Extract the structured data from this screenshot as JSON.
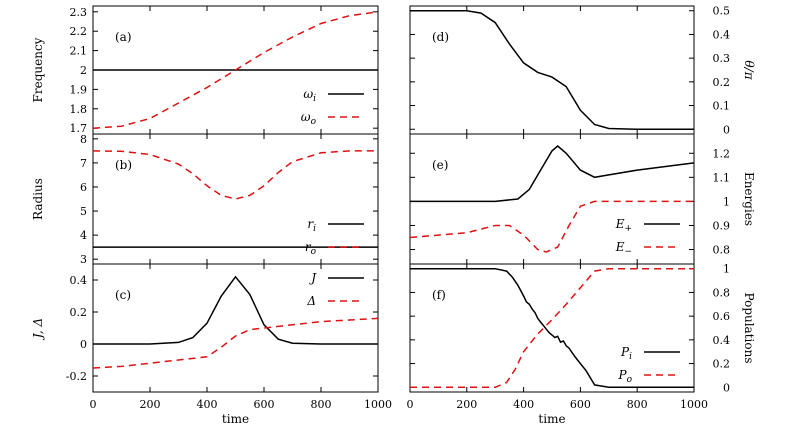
{
  "colors": {
    "solid": "#000000",
    "dashed": "#e01010"
  },
  "chart_data": [
    {
      "type": "line",
      "panel": "a",
      "column": "left",
      "row": 0,
      "label": "(a)",
      "ylabel": "Frequency",
      "ylabel_side": "left",
      "xlabel": "",
      "xlim": [
        0,
        1000
      ],
      "ylim": [
        1.67,
        2.33
      ],
      "yticks": [
        1.7,
        1.8,
        1.9,
        2,
        2.1,
        2.2,
        2.3
      ],
      "ytick_labels": [
        "1.7",
        "1.8",
        "1.9",
        "2",
        "2.1",
        "2.2",
        "2.3"
      ],
      "xticks": [
        0,
        200,
        400,
        600,
        800,
        1000
      ],
      "xtick_labels": [],
      "legend_pos": "bottom-right",
      "series": [
        {
          "name": "ω_i",
          "legend_main": "ω",
          "legend_sub": "i",
          "style": "solid",
          "x": [
            0,
            1000
          ],
          "y": [
            2.0,
            2.0
          ]
        },
        {
          "name": "ω_o",
          "legend_main": "ω",
          "legend_sub": "o",
          "style": "dashed",
          "x": [
            0,
            100,
            200,
            300,
            400,
            500,
            600,
            700,
            800,
            900,
            1000
          ],
          "y": [
            1.7,
            1.71,
            1.75,
            1.83,
            1.91,
            2.0,
            2.09,
            2.17,
            2.24,
            2.28,
            2.3
          ]
        }
      ]
    },
    {
      "type": "line",
      "panel": "b",
      "column": "left",
      "row": 1,
      "label": "(b)",
      "ylabel": "Radius",
      "ylabel_side": "left",
      "xlabel": "",
      "xlim": [
        0,
        1000
      ],
      "ylim": [
        2.8,
        8.2
      ],
      "yticks": [
        3,
        4,
        5,
        6,
        7,
        8
      ],
      "ytick_labels": [
        "3",
        "4",
        "5",
        "6",
        "7",
        "8"
      ],
      "xticks": [
        0,
        200,
        400,
        600,
        800,
        1000
      ],
      "xtick_labels": [],
      "legend_pos": "bottom-right",
      "series": [
        {
          "name": "r_i",
          "legend_main": "r",
          "legend_sub": "i",
          "style": "solid",
          "x": [
            0,
            1000
          ],
          "y": [
            3.5,
            3.5
          ]
        },
        {
          "name": "r_o",
          "legend_main": "r",
          "legend_sub": "o",
          "style": "dashed",
          "x": [
            0,
            100,
            200,
            300,
            350,
            400,
            450,
            500,
            550,
            600,
            650,
            700,
            800,
            900,
            1000
          ],
          "y": [
            7.5,
            7.48,
            7.35,
            6.95,
            6.55,
            6.05,
            5.65,
            5.5,
            5.65,
            6.05,
            6.6,
            7.05,
            7.42,
            7.5,
            7.5
          ]
        }
      ]
    },
    {
      "type": "line",
      "panel": "c",
      "column": "left",
      "row": 2,
      "label": "(c)",
      "ylabel": "J, Δ",
      "ylabel_side": "left",
      "xlabel": "time",
      "xlim": [
        0,
        1000
      ],
      "ylim": [
        -0.3,
        0.5
      ],
      "yticks": [
        -0.2,
        0,
        0.2,
        0.4
      ],
      "ytick_labels": [
        "-0.2",
        "0",
        "0.2",
        "0.4"
      ],
      "xticks": [
        0,
        200,
        400,
        600,
        800,
        1000
      ],
      "xtick_labels": [
        "0",
        "200",
        "400",
        "600",
        "800",
        "1000"
      ],
      "legend_pos": "top-right",
      "series": [
        {
          "name": "J",
          "legend_main": "J",
          "legend_sub": "",
          "style": "solid",
          "x": [
            0,
            200,
            300,
            350,
            400,
            450,
            500,
            550,
            600,
            650,
            700,
            800,
            1000
          ],
          "y": [
            0,
            0,
            0.01,
            0.04,
            0.13,
            0.3,
            0.42,
            0.31,
            0.12,
            0.03,
            0.005,
            0,
            0
          ]
        },
        {
          "name": "Δ",
          "legend_main": "Δ",
          "legend_sub": "",
          "style": "dashed",
          "x": [
            0,
            100,
            200,
            300,
            400,
            450,
            500,
            550,
            600,
            700,
            800,
            900,
            1000
          ],
          "y": [
            -0.15,
            -0.14,
            -0.12,
            -0.1,
            -0.08,
            -0.02,
            0.05,
            0.09,
            0.1,
            0.12,
            0.14,
            0.15,
            0.16
          ]
        }
      ]
    },
    {
      "type": "line",
      "panel": "d",
      "column": "right",
      "row": 0,
      "label": "(d)",
      "ylabel": "θ/π",
      "ylabel_side": "right",
      "xlabel": "",
      "xlim": [
        0,
        1000
      ],
      "ylim": [
        -0.02,
        0.52
      ],
      "yticks": [
        0,
        0.1,
        0.2,
        0.3,
        0.4,
        0.5
      ],
      "ytick_labels": [
        "0",
        "0.1",
        "0.2",
        "0.3",
        "0.4",
        "0.5"
      ],
      "xticks": [
        0,
        200,
        400,
        600,
        800,
        1000
      ],
      "xtick_labels": [],
      "legend_pos": "none",
      "series": [
        {
          "name": "",
          "style": "solid",
          "x": [
            0,
            200,
            250,
            300,
            350,
            400,
            450,
            500,
            550,
            600,
            650,
            700,
            800,
            1000
          ],
          "y": [
            0.5,
            0.5,
            0.49,
            0.45,
            0.36,
            0.28,
            0.24,
            0.22,
            0.18,
            0.08,
            0.02,
            0.003,
            0.0,
            0.0
          ]
        }
      ]
    },
    {
      "type": "line",
      "panel": "e",
      "column": "right",
      "row": 1,
      "label": "(e)",
      "ylabel": "Energies",
      "ylabel_side": "right",
      "xlabel": "",
      "xlim": [
        0,
        1000
      ],
      "ylim": [
        0.74,
        1.28
      ],
      "yticks": [
        0.8,
        0.9,
        1,
        1.1,
        1.2
      ],
      "ytick_labels": [
        "0.8",
        "0.9",
        "1",
        "1.1",
        "1.2"
      ],
      "xticks": [
        0,
        200,
        400,
        600,
        800,
        1000
      ],
      "xtick_labels": [],
      "legend_pos": "bottom-right",
      "series": [
        {
          "name": "E_+",
          "legend_main": "E",
          "legend_sub": "+",
          "style": "solid",
          "x": [
            0,
            300,
            380,
            420,
            460,
            500,
            520,
            550,
            600,
            650,
            700,
            800,
            900,
            1000
          ],
          "y": [
            1.0,
            1.0,
            1.01,
            1.05,
            1.13,
            1.21,
            1.23,
            1.2,
            1.13,
            1.1,
            1.11,
            1.13,
            1.145,
            1.16
          ]
        },
        {
          "name": "E_−",
          "legend_main": "E",
          "legend_sub": "−",
          "style": "dashed",
          "x": [
            0,
            100,
            200,
            300,
            350,
            400,
            450,
            480,
            520,
            560,
            600,
            650,
            700,
            1000
          ],
          "y": [
            0.85,
            0.86,
            0.87,
            0.9,
            0.9,
            0.86,
            0.8,
            0.79,
            0.81,
            0.9,
            0.98,
            1.0,
            1.0,
            1.0
          ]
        }
      ]
    },
    {
      "type": "line",
      "panel": "f",
      "column": "right",
      "row": 2,
      "label": "(f)",
      "ylabel": "Populations",
      "ylabel_side": "right",
      "xlabel": "time",
      "xlim": [
        0,
        1000
      ],
      "ylim": [
        -0.04,
        1.04
      ],
      "yticks": [
        0,
        0.2,
        0.4,
        0.6,
        0.8,
        1
      ],
      "ytick_labels": [
        "0",
        "0.2",
        "0.4",
        "0.6",
        "0.8",
        "1"
      ],
      "xticks": [
        0,
        200,
        400,
        600,
        800,
        1000
      ],
      "xtick_labels": [
        "0",
        "200",
        "400",
        "600",
        "800",
        "1000"
      ],
      "legend_pos": "bottom-right",
      "series": [
        {
          "name": "P_i",
          "legend_main": "P",
          "legend_sub": "i",
          "style": "solid",
          "x": [
            0,
            300,
            340,
            360,
            380,
            400,
            410,
            420,
            430,
            440,
            450,
            460,
            470,
            480,
            490,
            500,
            510,
            520,
            530,
            540,
            550,
            560,
            580,
            600,
            620,
            650,
            700,
            1000
          ],
          "y": [
            1.0,
            1.0,
            0.98,
            0.93,
            0.86,
            0.77,
            0.72,
            0.7,
            0.66,
            0.63,
            0.58,
            0.55,
            0.52,
            0.49,
            0.46,
            0.44,
            0.42,
            0.43,
            0.38,
            0.39,
            0.35,
            0.33,
            0.26,
            0.2,
            0.14,
            0.02,
            0.0,
            0.0
          ]
        },
        {
          "name": "P_o",
          "legend_main": "P",
          "legend_sub": "o",
          "style": "dashed",
          "x": [
            0,
            300,
            340,
            370,
            400,
            450,
            500,
            550,
            600,
            650,
            700,
            1000
          ],
          "y": [
            0.0,
            0.0,
            0.04,
            0.15,
            0.3,
            0.45,
            0.57,
            0.7,
            0.84,
            0.98,
            1.0,
            1.0
          ]
        }
      ]
    }
  ]
}
